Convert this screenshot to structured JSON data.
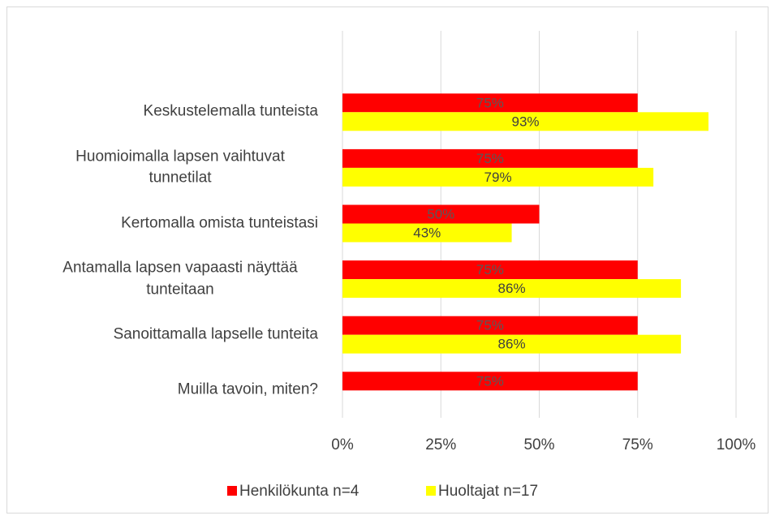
{
  "chart_data": {
    "type": "bar",
    "orientation": "horizontal",
    "categories": [
      "Keskustelemalla tunteista",
      "Huomioimalla lapsen vaihtuvat tunnetilat",
      "Kertomalla omista tunteistasi",
      "Antamalla lapsen vapaasti näyttää tunteitaan",
      "Sanoittamalla lapselle tunteita",
      "Muilla tavoin, miten?"
    ],
    "series": [
      {
        "name": "Henkilökunta n=4",
        "color": "#ff0000",
        "values": [
          75,
          75,
          50,
          75,
          75,
          75
        ],
        "value_labels": [
          "75%",
          "75%",
          "50%",
          "75%",
          "75%",
          "75%"
        ]
      },
      {
        "name": "Huoltajat n=17",
        "color": "#ffff00",
        "values": [
          93,
          79,
          43,
          86,
          86,
          null
        ],
        "value_labels": [
          "93%",
          "79%",
          "43%",
          "86%",
          "86%",
          null
        ]
      }
    ],
    "xlim": [
      0,
      100
    ],
    "xticks": [
      {
        "value": 0,
        "label": "0%"
      },
      {
        "value": 25,
        "label": "25%"
      },
      {
        "value": 50,
        "label": "50%"
      },
      {
        "value": 75,
        "label": "75%"
      },
      {
        "value": 100,
        "label": "100%"
      }
    ],
    "grid": true,
    "legend": "bottom"
  }
}
